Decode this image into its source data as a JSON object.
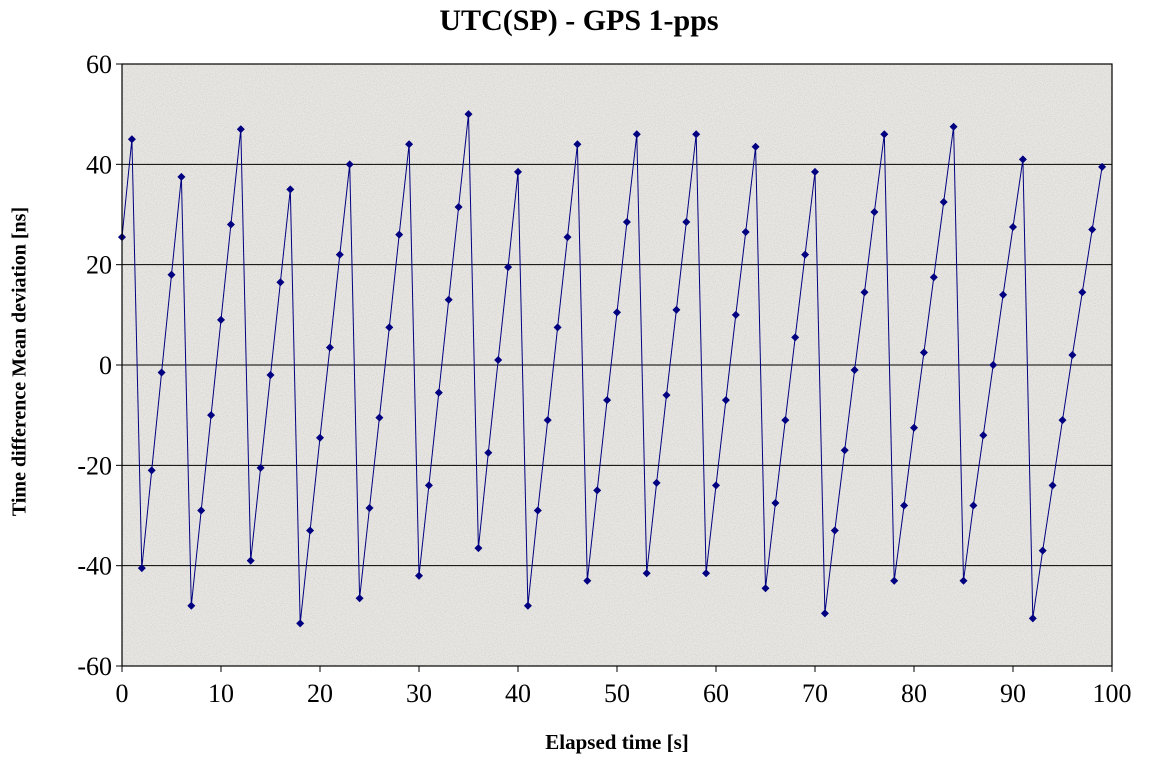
{
  "chart_data": {
    "type": "line",
    "title": "UTC(SP) - GPS 1-pps",
    "xlabel": "Elapsed time [s]",
    "ylabel": "Time difference Mean deviation [ns]",
    "xlim": [
      0,
      100
    ],
    "ylim": [
      -60,
      60
    ],
    "xticks": [
      "0",
      "10",
      "20",
      "30",
      "40",
      "50",
      "60",
      "70",
      "80",
      "90",
      "100"
    ],
    "yticks": [
      "60",
      "40",
      "20",
      "0",
      "-20",
      "-40",
      "-60"
    ],
    "grid": "horizontal",
    "colors": {
      "series": "#000080",
      "grid": "#000000",
      "background": "#e9e7e3"
    },
    "series": [
      {
        "x": [
          0,
          1,
          2,
          3,
          4,
          5,
          6,
          7,
          8,
          9,
          10,
          11,
          12,
          13,
          14,
          15,
          16,
          17,
          18,
          19,
          20,
          21,
          22,
          23,
          24,
          25,
          26,
          27,
          28,
          29,
          30,
          31,
          32,
          33,
          34,
          35,
          36,
          37,
          38,
          39,
          40,
          41,
          42,
          43,
          44,
          45,
          46,
          47,
          48,
          49,
          50,
          51,
          52,
          53,
          54,
          55,
          56,
          57,
          58,
          59,
          60,
          61,
          62,
          63,
          64,
          65,
          66,
          67,
          68,
          69,
          70,
          71,
          72,
          73,
          74,
          75,
          76,
          77,
          78,
          79,
          80,
          81,
          82,
          83,
          84,
          85,
          86,
          87,
          88,
          89,
          90,
          91,
          92,
          93,
          94,
          95,
          96,
          97,
          98,
          99
        ],
        "y": [
          25.5,
          45,
          -40.5,
          -21,
          -1.5,
          18,
          37.5,
          -48,
          -29,
          -10,
          9,
          28,
          47,
          -39,
          -20.5,
          -2,
          16.5,
          35,
          -51.5,
          -33,
          -14.5,
          3.5,
          22,
          40,
          -46.5,
          -28.5,
          -10.5,
          7.5,
          26,
          44,
          -42,
          -24,
          -5.5,
          13,
          31.5,
          50,
          -36.5,
          -17.5,
          1,
          19.5,
          38.5,
          -48,
          -29,
          -11,
          7.5,
          25.5,
          44,
          -43,
          -25,
          -7,
          10.5,
          28.5,
          46,
          -41.5,
          -23.5,
          -6,
          11,
          28.5,
          46,
          -41.5,
          -24,
          -7,
          10,
          26.5,
          43.5,
          -44.5,
          -27.5,
          -11,
          5.5,
          22,
          38.5,
          -49.5,
          -33,
          -17,
          -1,
          14.5,
          30.5,
          46,
          -43,
          -28,
          -12.5,
          2.5,
          17.5,
          32.5,
          47.5,
          -43,
          -28,
          -14,
          0,
          14,
          27.5,
          41,
          -50.5,
          -37,
          -24,
          -11,
          2,
          14.5,
          27,
          39.5
        ]
      }
    ]
  }
}
